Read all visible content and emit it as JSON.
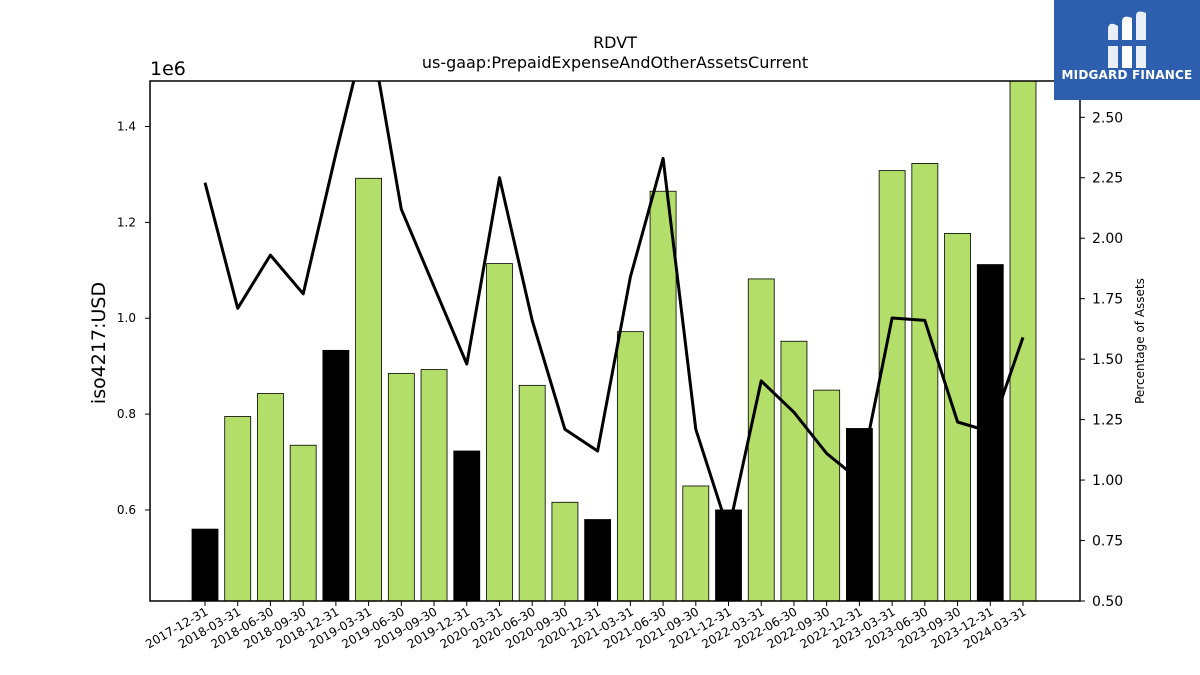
{
  "chart_data": {
    "type": "bar",
    "title": "RDVT",
    "subtitle": "us-gaap:PrepaidExpenseAndOtherAssetsCurrent",
    "ylabel": "iso4217:USD",
    "y_offset_label": "1e6",
    "y2label": "Percentage of Assets",
    "ylim": [
      0.41,
      1.495
    ],
    "y2lim": [
      0.5,
      2.65
    ],
    "yticks": [
      "0.6",
      "0.8",
      "1.0",
      "1.2",
      "1.4"
    ],
    "y2ticks": [
      "0.50",
      "0.75",
      "1.00",
      "1.25",
      "1.50",
      "1.75",
      "2.00",
      "2.25",
      "2.50"
    ],
    "categories": [
      "2017-12-31",
      "2018-03-31",
      "2018-06-30",
      "2018-09-30",
      "2018-12-31",
      "2019-03-31",
      "2019-06-30",
      "2019-09-30",
      "2019-12-31",
      "2020-03-31",
      "2020-06-30",
      "2020-09-30",
      "2020-12-31",
      "2021-03-31",
      "2021-06-30",
      "2021-09-30",
      "2021-12-31",
      "2022-03-31",
      "2022-06-30",
      "2022-09-30",
      "2022-12-31",
      "2023-03-31",
      "2023-06-30",
      "2023-09-30",
      "2023-12-31",
      "2024-03-31"
    ],
    "values": [
      0.56,
      0.795,
      0.843,
      0.735,
      0.933,
      1.292,
      0.885,
      0.893,
      0.723,
      1.114,
      0.86,
      0.616,
      0.58,
      0.972,
      1.265,
      0.65,
      0.6,
      1.082,
      0.952,
      0.85,
      0.77,
      1.308,
      1.323,
      1.177,
      1.112,
      1.495
    ],
    "bar_colors": [
      "#000000",
      "#b3de69",
      "#b3de69",
      "#b3de69",
      "#000000",
      "#b3de69",
      "#b3de69",
      "#b3de69",
      "#000000",
      "#b3de69",
      "#b3de69",
      "#b3de69",
      "#000000",
      "#b3de69",
      "#b3de69",
      "#b3de69",
      "#000000",
      "#b3de69",
      "#b3de69",
      "#b3de69",
      "#000000",
      "#b3de69",
      "#b3de69",
      "#b3de69",
      "#000000",
      "#b3de69"
    ],
    "line_values": [
      2.23,
      1.71,
      1.93,
      1.77,
      2.35,
      2.9,
      2.12,
      1.8,
      1.48,
      2.25,
      1.66,
      1.21,
      1.12,
      1.84,
      2.33,
      1.21,
      0.79,
      1.41,
      1.28,
      1.11,
      1.0,
      1.67,
      1.66,
      1.24,
      1.2,
      1.59
    ],
    "line_color": "#000000",
    "grid": false
  },
  "logo": {
    "text": "MIDGARD FINANCE",
    "background": "#2d5fae"
  }
}
